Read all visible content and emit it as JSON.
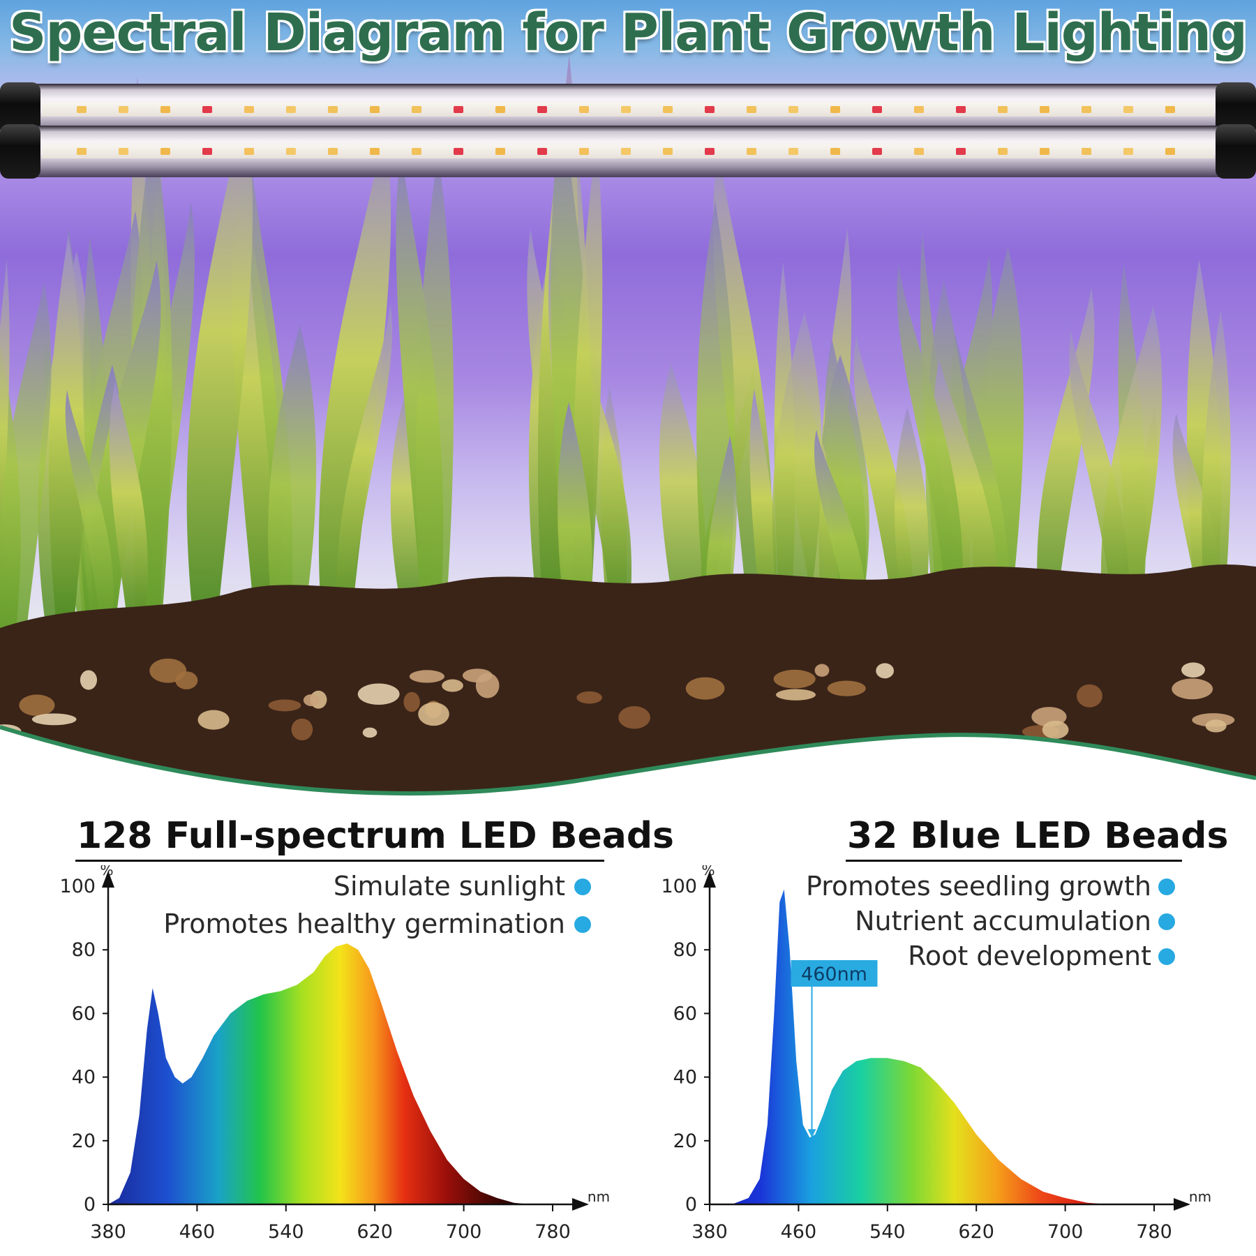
{
  "title": "Spectral Diagram for Plant Growth Lighting",
  "colors": {
    "title": "#2e6e4e",
    "wave": "#2f8a5a",
    "bullet": "#27a9e1",
    "callout_bg": "#29abe2",
    "callout_text": "#0d3d66"
  },
  "icons": [
    "led-bar-icon",
    "bullet-dot-icon"
  ],
  "chart_data": [
    {
      "type": "area",
      "title": "128 Full-spectrum LED Beads",
      "xlabel": "nm",
      "ylabel": "%",
      "xlim": [
        380,
        780
      ],
      "ylim": [
        0,
        100
      ],
      "x_ticks": [
        "380",
        "460",
        "540",
        "620",
        "700",
        "780"
      ],
      "y_ticks": [
        "0",
        "20",
        "40",
        "60",
        "80",
        "100"
      ],
      "grid": false,
      "features": [
        "Simulate sunlight",
        "Promotes healthy germination"
      ],
      "x": [
        380,
        390,
        400,
        408,
        415,
        420,
        425,
        432,
        440,
        447,
        455,
        465,
        475,
        490,
        505,
        520,
        535,
        550,
        565,
        575,
        585,
        595,
        605,
        615,
        625,
        640,
        655,
        670,
        685,
        700,
        715,
        730,
        745,
        760
      ],
      "y": [
        0,
        2,
        10,
        28,
        55,
        68,
        60,
        46,
        40,
        38,
        40,
        46,
        53,
        60,
        64,
        66,
        67,
        69,
        73,
        78,
        81,
        82,
        80,
        74,
        64,
        48,
        34,
        23,
        14,
        8,
        4,
        2,
        0.5,
        0
      ]
    },
    {
      "type": "area",
      "title": "32 Blue LED Beads",
      "xlabel": "nm",
      "ylabel": "%",
      "xlim": [
        380,
        780
      ],
      "ylim": [
        0,
        100
      ],
      "x_ticks": [
        "380",
        "460",
        "540",
        "620",
        "700",
        "780"
      ],
      "y_ticks": [
        "0",
        "20",
        "40",
        "60",
        "80",
        "100"
      ],
      "grid": false,
      "features": [
        "Promotes seedling growth",
        "Nutrient accumulation",
        "Root development"
      ],
      "callout": "460nm",
      "x": [
        380,
        400,
        415,
        425,
        432,
        438,
        443,
        447,
        452,
        458,
        464,
        470,
        475,
        482,
        490,
        500,
        512,
        525,
        540,
        555,
        570,
        585,
        600,
        620,
        640,
        660,
        680,
        700,
        720,
        740,
        760
      ],
      "y": [
        0,
        0,
        2,
        8,
        25,
        60,
        95,
        99,
        80,
        45,
        25,
        21,
        22,
        28,
        36,
        42,
        45,
        46,
        46,
        45,
        43,
        38,
        32,
        22,
        14,
        8,
        4,
        2,
        0.5,
        0,
        0
      ]
    }
  ]
}
